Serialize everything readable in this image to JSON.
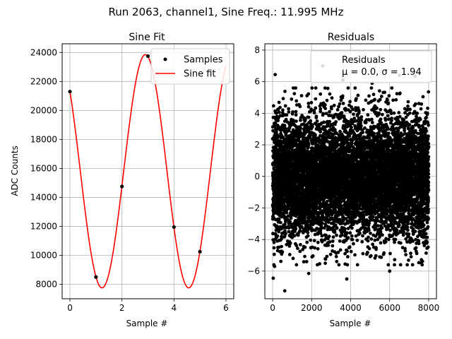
{
  "figure_title": "Run 2063, channel1, Sine Freq.: 11.995 MHz",
  "chart_data": [
    {
      "type": "line",
      "title": "Sine Fit",
      "xlabel": "Sample #",
      "ylabel": "ADC Counts",
      "xlim": [
        -0.3,
        6.3
      ],
      "ylim": [
        7000,
        24600
      ],
      "xticks": [
        0,
        2,
        4,
        6
      ],
      "yticks": [
        8000,
        10000,
        12000,
        14000,
        16000,
        18000,
        20000,
        22000,
        24000
      ],
      "grid": true,
      "legend_position": "top-right",
      "series": [
        {
          "name": "Samples",
          "style": "markers",
          "color": "#000000",
          "x": [
            0,
            1,
            2,
            3,
            4,
            5
          ],
          "y": [
            21300,
            8500,
            14750,
            23750,
            11950,
            10250
          ]
        },
        {
          "name": "Sine fit",
          "style": "line",
          "color": "#ff0000",
          "function": "sine",
          "params": {
            "offset": 15800,
            "amplitude": 8050,
            "period": 3.334,
            "peak_x": 2.9
          },
          "x_range": [
            0,
            6
          ]
        }
      ]
    },
    {
      "type": "scatter",
      "title": "Residuals",
      "xlabel": "Sample #",
      "ylabel": "",
      "xlim": [
        -400,
        8400
      ],
      "ylim": [
        -7.75,
        8.4
      ],
      "xticks": [
        0,
        2000,
        4000,
        6000,
        8000
      ],
      "yticks": [
        -6,
        -4,
        -2,
        0,
        2,
        4,
        6,
        8
      ],
      "grid": true,
      "legend_position": "top-right",
      "legend_label": "Residuals",
      "legend_stats": "μ = 0.0, σ = 1.94",
      "series": [
        {
          "name": "Residuals",
          "color": "#000000",
          "n_points": 8000,
          "mean": 0.0,
          "std": 1.94,
          "x_range": [
            0,
            8000
          ],
          "outliers": [
            {
              "x": 130,
              "y": 6.45
            },
            {
              "x": 30,
              "y": -6.45
            },
            {
              "x": 620,
              "y": -7.25
            },
            {
              "x": 2570,
              "y": 7.0
            },
            {
              "x": 4300,
              "y": 7.25
            },
            {
              "x": 6500,
              "y": 6.4
            },
            {
              "x": 7300,
              "y": 6.35
            },
            {
              "x": 1850,
              "y": -6.15
            },
            {
              "x": 3800,
              "y": -6.5
            },
            {
              "x": 6000,
              "y": -6.0
            },
            {
              "x": 3600,
              "y": 6.1
            },
            {
              "x": 100,
              "y": -5.7
            },
            {
              "x": 2700,
              "y": -5.5
            },
            {
              "x": 5100,
              "y": 5.9
            }
          ]
        }
      ]
    }
  ]
}
